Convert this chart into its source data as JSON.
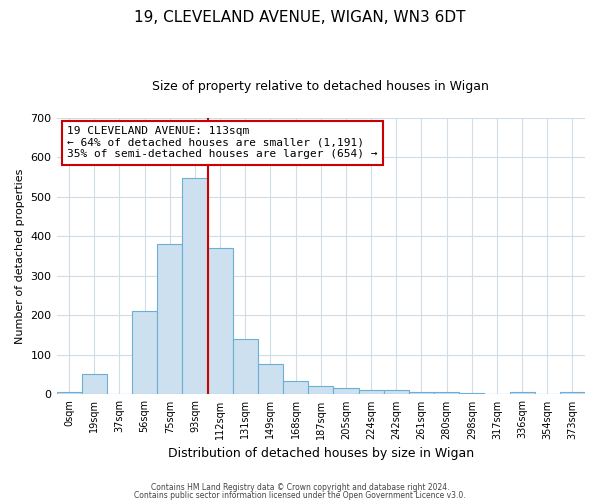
{
  "title": "19, CLEVELAND AVENUE, WIGAN, WN3 6DT",
  "subtitle": "Size of property relative to detached houses in Wigan",
  "xlabel": "Distribution of detached houses by size in Wigan",
  "ylabel": "Number of detached properties",
  "bar_labels": [
    "0sqm",
    "19sqm",
    "37sqm",
    "56sqm",
    "75sqm",
    "93sqm",
    "112sqm",
    "131sqm",
    "149sqm",
    "168sqm",
    "187sqm",
    "205sqm",
    "224sqm",
    "242sqm",
    "261sqm",
    "280sqm",
    "298sqm",
    "317sqm",
    "336sqm",
    "354sqm",
    "373sqm"
  ],
  "bar_values": [
    7,
    52,
    0,
    210,
    380,
    547,
    370,
    140,
    77,
    35,
    21,
    17,
    11,
    10,
    7,
    5,
    4,
    0,
    7,
    0,
    5
  ],
  "bar_color": "#cce0f0",
  "bar_edge_color": "#6baed6",
  "vline_x": 5.5,
  "vline_color": "#cc0000",
  "annotation_text": "19 CLEVELAND AVENUE: 113sqm\n← 64% of detached houses are smaller (1,191)\n35% of semi-detached houses are larger (654) →",
  "annotation_box_color": "#ffffff",
  "annotation_box_edge": "#cc0000",
  "ylim": [
    0,
    700
  ],
  "yticks": [
    0,
    100,
    200,
    300,
    400,
    500,
    600,
    700
  ],
  "footnote1": "Contains HM Land Registry data © Crown copyright and database right 2024.",
  "footnote2": "Contains public sector information licensed under the Open Government Licence v3.0.",
  "background_color": "#ffffff",
  "grid_color": "#d0dce8",
  "title_fontsize": 11,
  "subtitle_fontsize": 9,
  "ylabel_fontsize": 8,
  "xlabel_fontsize": 9
}
